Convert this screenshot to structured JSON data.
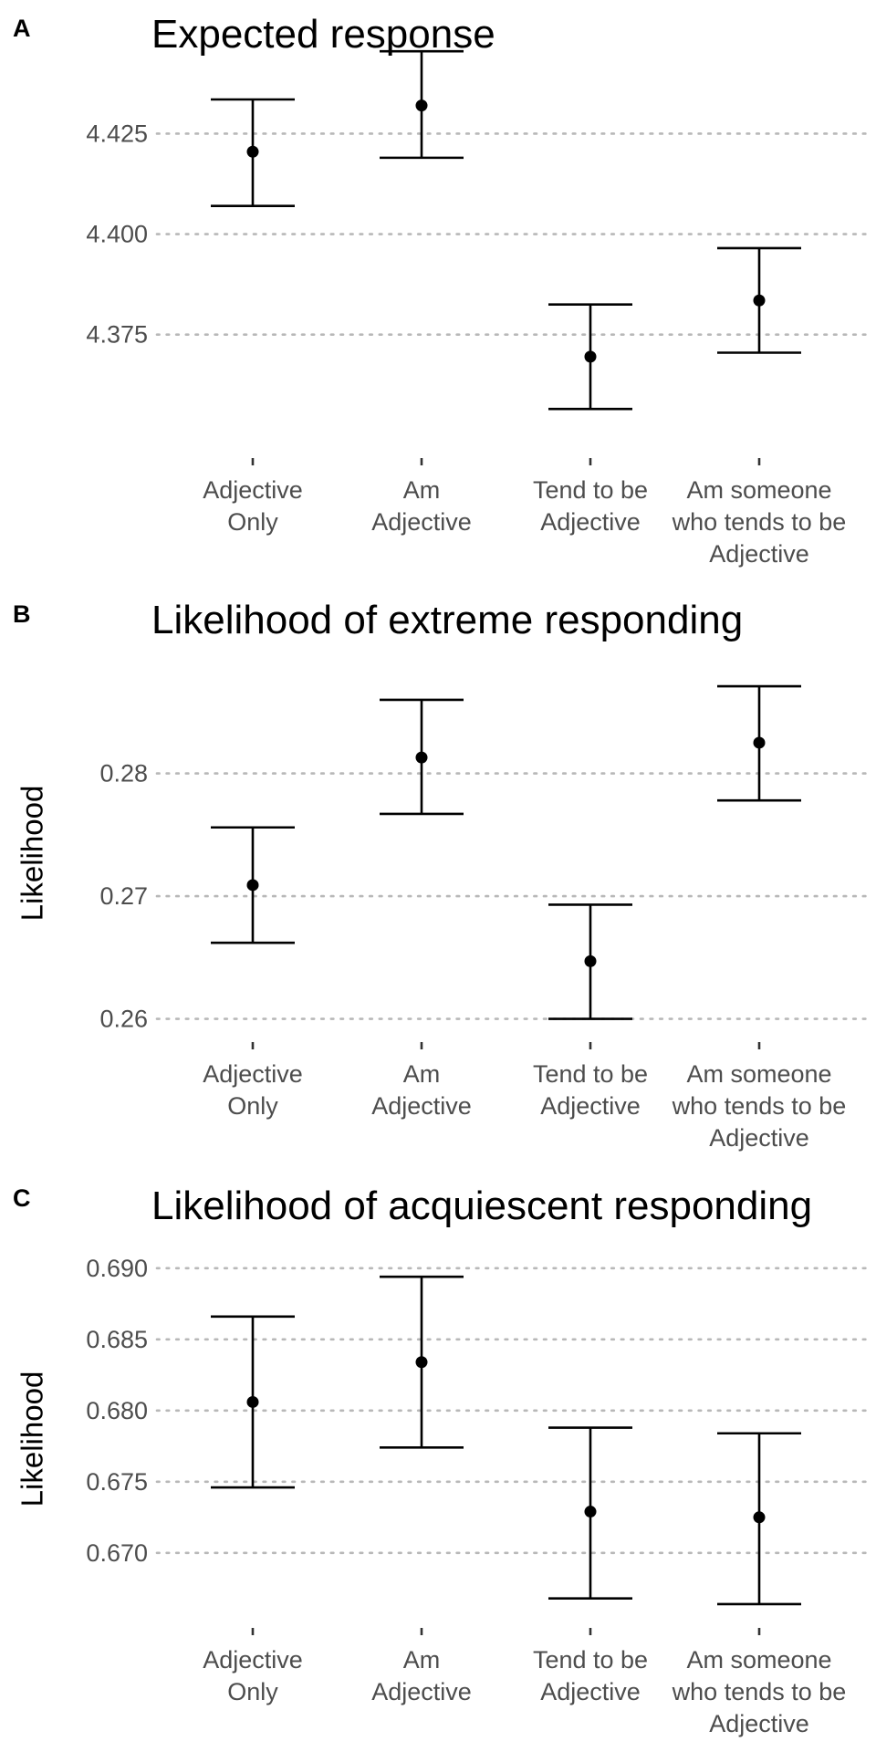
{
  "chart_data": [
    {
      "type": "scatter",
      "panel_label": "A",
      "title": "Expected response",
      "ylabel": "",
      "ylim": [
        4.347,
        4.436
      ],
      "yticks": [
        4.375,
        4.4,
        4.425
      ],
      "ytick_labels": [
        "4.375",
        "4.400",
        "4.425"
      ],
      "grid": "horizontal dotted",
      "categories": [
        "Adjective Only",
        "Am Adjective",
        "Tend to be Adjective",
        "Am someone who tends to be Adjective"
      ],
      "category_lines": [
        [
          "Adjective",
          "Only"
        ],
        [
          "Am",
          "Adjective"
        ],
        [
          "Tend to be",
          "Adjective"
        ],
        [
          "Am someone",
          "who tends to be",
          "Adjective"
        ]
      ],
      "values": [
        4.4205,
        4.432,
        4.3695,
        4.3835
      ],
      "error_low": [
        4.407,
        4.419,
        4.3565,
        4.3705
      ],
      "error_high": [
        4.4335,
        4.4455,
        4.3825,
        4.3965
      ]
    },
    {
      "type": "scatter",
      "panel_label": "B",
      "title": "Likelihood of extreme responding",
      "ylabel": "Likelihood",
      "ylim": [
        0.259,
        0.288
      ],
      "yticks": [
        0.26,
        0.27,
        0.28
      ],
      "ytick_labels": [
        "0.26",
        "0.27",
        "0.28"
      ],
      "grid": "horizontal dotted",
      "categories": [
        "Adjective Only",
        "Am Adjective",
        "Tend to be Adjective",
        "Am someone who tends to be Adjective"
      ],
      "category_lines": [
        [
          "Adjective",
          "Only"
        ],
        [
          "Am",
          "Adjective"
        ],
        [
          "Tend to be",
          "Adjective"
        ],
        [
          "Am someone",
          "who tends to be",
          "Adjective"
        ]
      ],
      "values": [
        0.2709,
        0.2813,
        0.2647,
        0.2825
      ],
      "error_low": [
        0.2662,
        0.2767,
        0.26,
        0.2778
      ],
      "error_high": [
        0.2756,
        0.286,
        0.2693,
        0.2871
      ]
    },
    {
      "type": "scatter",
      "panel_label": "C",
      "title": "Likelihood of acquiescent responding",
      "ylabel": "Likelihood",
      "ylim": [
        0.6655,
        0.6905
      ],
      "yticks": [
        0.67,
        0.675,
        0.68,
        0.685,
        0.69
      ],
      "ytick_labels": [
        "0.670",
        "0.675",
        "0.680",
        "0.685",
        "0.690"
      ],
      "grid": "horizontal dotted",
      "categories": [
        "Adjective Only",
        "Am Adjective",
        "Tend to be Adjective",
        "Am someone who tends to be Adjective"
      ],
      "category_lines": [
        [
          "Adjective",
          "Only"
        ],
        [
          "Am",
          "Adjective"
        ],
        [
          "Tend to be",
          "Adjective"
        ],
        [
          "Am someone",
          "who tends to be",
          "Adjective"
        ]
      ],
      "values": [
        0.6806,
        0.6834,
        0.6729,
        0.6725
      ],
      "error_low": [
        0.6746,
        0.6774,
        0.6668,
        0.6664
      ],
      "error_high": [
        0.6866,
        0.6894,
        0.6788,
        0.6784
      ]
    }
  ]
}
